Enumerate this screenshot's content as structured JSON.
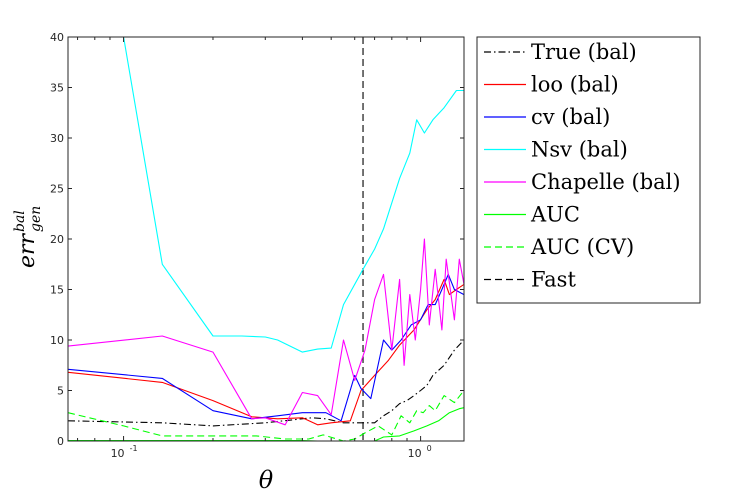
{
  "chart_data": {
    "type": "line",
    "xscale": "log",
    "xlim": [
      0.065,
      1.4
    ],
    "ylim": [
      0,
      40
    ],
    "grid": false,
    "legend_position": "outside-right",
    "xlabel": "θ",
    "ylabel": "err",
    "ylabel_sup": "bal",
    "ylabel_sub": "gen",
    "x_ticks": [
      {
        "value": 0.1,
        "label": "10",
        "exp": "-1"
      },
      {
        "value": 1.0,
        "label": "10",
        "exp": "0"
      }
    ],
    "y_ticks": [
      {
        "value": 0,
        "label": "0"
      },
      {
        "value": 5,
        "label": "5"
      },
      {
        "value": 10,
        "label": "10"
      },
      {
        "value": 15,
        "label": "15"
      },
      {
        "value": 20,
        "label": "20"
      },
      {
        "value": 25,
        "label": "25"
      },
      {
        "value": 30,
        "label": "30"
      },
      {
        "value": 35,
        "label": "35"
      },
      {
        "value": 40,
        "label": "40"
      }
    ],
    "vline": {
      "name": "Fast",
      "x": 0.64,
      "color": "#000000",
      "dash": "dashed"
    },
    "series": [
      {
        "name": "True (bal)",
        "color": "#000000",
        "dash": "dashdot",
        "points": [
          [
            0.065,
            2.0
          ],
          [
            0.135,
            1.8
          ],
          [
            0.2,
            1.5
          ],
          [
            0.3,
            1.8
          ],
          [
            0.43,
            2.3
          ],
          [
            0.48,
            2.2
          ],
          [
            0.55,
            1.8
          ],
          [
            0.65,
            1.8
          ],
          [
            0.7,
            1.8
          ],
          [
            0.75,
            2.5
          ],
          [
            0.8,
            3.0
          ],
          [
            0.85,
            3.7
          ],
          [
            0.9,
            4.0
          ],
          [
            0.95,
            4.5
          ],
          [
            1.0,
            5.0
          ],
          [
            1.05,
            5.5
          ],
          [
            1.1,
            6.5
          ],
          [
            1.2,
            7.5
          ],
          [
            1.3,
            9.0
          ],
          [
            1.4,
            10.0
          ]
        ]
      },
      {
        "name": "loo (bal)",
        "color": "#ff0000",
        "dash": "solid",
        "points": [
          [
            0.065,
            6.8
          ],
          [
            0.135,
            5.8
          ],
          [
            0.2,
            4.0
          ],
          [
            0.27,
            2.4
          ],
          [
            0.33,
            2.2
          ],
          [
            0.4,
            2.3
          ],
          [
            0.45,
            1.6
          ],
          [
            0.5,
            1.8
          ],
          [
            0.58,
            2.0
          ],
          [
            0.63,
            5.0
          ],
          [
            0.7,
            6.5
          ],
          [
            0.78,
            8.0
          ],
          [
            0.85,
            9.5
          ],
          [
            0.95,
            11.0
          ],
          [
            1.05,
            13.0
          ],
          [
            1.12,
            14.0
          ],
          [
            1.2,
            16.0
          ],
          [
            1.25,
            14.5
          ],
          [
            1.32,
            15.0
          ],
          [
            1.4,
            15.5
          ]
        ]
      },
      {
        "name": "cv (bal)",
        "color": "#0000ff",
        "dash": "solid",
        "points": [
          [
            0.065,
            7.1
          ],
          [
            0.135,
            6.2
          ],
          [
            0.2,
            3.0
          ],
          [
            0.27,
            2.2
          ],
          [
            0.33,
            2.5
          ],
          [
            0.4,
            2.8
          ],
          [
            0.48,
            2.8
          ],
          [
            0.54,
            2.0
          ],
          [
            0.6,
            6.5
          ],
          [
            0.63,
            5.2
          ],
          [
            0.68,
            4.2
          ],
          [
            0.75,
            10.0
          ],
          [
            0.8,
            9.0
          ],
          [
            0.86,
            10.0
          ],
          [
            0.93,
            11.5
          ],
          [
            1.0,
            12.0
          ],
          [
            1.06,
            13.5
          ],
          [
            1.12,
            13.5
          ],
          [
            1.18,
            15.0
          ],
          [
            1.24,
            16.5
          ],
          [
            1.3,
            15.0
          ],
          [
            1.4,
            14.5
          ]
        ]
      },
      {
        "name": "Nsv (bal)",
        "color": "#00ffff",
        "dash": "solid",
        "points": [
          [
            0.088,
            45.0
          ],
          [
            0.1,
            40.0
          ],
          [
            0.135,
            17.5
          ],
          [
            0.2,
            10.4
          ],
          [
            0.25,
            10.4
          ],
          [
            0.3,
            10.3
          ],
          [
            0.33,
            10.0
          ],
          [
            0.4,
            8.8
          ],
          [
            0.45,
            9.1
          ],
          [
            0.5,
            9.2
          ],
          [
            0.55,
            13.5
          ],
          [
            0.64,
            17.0
          ],
          [
            0.7,
            19.0
          ],
          [
            0.75,
            21.0
          ],
          [
            0.85,
            26.0
          ],
          [
            0.92,
            28.5
          ],
          [
            0.97,
            31.8
          ],
          [
            1.03,
            30.5
          ],
          [
            1.1,
            31.8
          ],
          [
            1.2,
            33.0
          ],
          [
            1.32,
            34.7
          ],
          [
            1.4,
            34.7
          ]
        ]
      },
      {
        "name": "Chapelle (bal)",
        "color": "#ff00ff",
        "dash": "solid",
        "points": [
          [
            0.065,
            9.4
          ],
          [
            0.135,
            10.4
          ],
          [
            0.2,
            8.8
          ],
          [
            0.27,
            2.2
          ],
          [
            0.3,
            2.3
          ],
          [
            0.35,
            1.6
          ],
          [
            0.4,
            4.8
          ],
          [
            0.45,
            4.5
          ],
          [
            0.5,
            2.6
          ],
          [
            0.55,
            10.0
          ],
          [
            0.6,
            6.0
          ],
          [
            0.65,
            9.0
          ],
          [
            0.7,
            14.0
          ],
          [
            0.75,
            16.5
          ],
          [
            0.8,
            9.0
          ],
          [
            0.85,
            16.0
          ],
          [
            0.88,
            7.5
          ],
          [
            0.92,
            14.5
          ],
          [
            0.96,
            10.0
          ],
          [
            1.0,
            15.0
          ],
          [
            1.03,
            20.0
          ],
          [
            1.07,
            11.5
          ],
          [
            1.12,
            17.0
          ],
          [
            1.18,
            11.0
          ],
          [
            1.22,
            18.0
          ],
          [
            1.3,
            12.0
          ],
          [
            1.35,
            18.0
          ],
          [
            1.4,
            15.5
          ]
        ]
      },
      {
        "name": "AUC",
        "color": "#00ff00",
        "dash": "solid",
        "points": [
          [
            0.065,
            0.05
          ],
          [
            0.4,
            0.05
          ],
          [
            0.45,
            0.0
          ],
          [
            0.7,
            0.0
          ],
          [
            0.75,
            0.4
          ],
          [
            0.85,
            0.5
          ],
          [
            0.95,
            1.0
          ],
          [
            1.05,
            1.5
          ],
          [
            1.15,
            2.0
          ],
          [
            1.25,
            2.8
          ],
          [
            1.35,
            3.2
          ],
          [
            1.4,
            3.3
          ]
        ]
      },
      {
        "name": "AUC (CV)",
        "color": "#00ff00",
        "dash": "dashed",
        "points": [
          [
            0.065,
            2.8
          ],
          [
            0.1,
            1.5
          ],
          [
            0.135,
            0.5
          ],
          [
            0.2,
            0.5
          ],
          [
            0.28,
            0.5
          ],
          [
            0.35,
            0.2
          ],
          [
            0.42,
            0.2
          ],
          [
            0.47,
            0.6
          ],
          [
            0.55,
            0.0
          ],
          [
            0.6,
            0.2
          ],
          [
            0.65,
            0.8
          ],
          [
            0.72,
            1.5
          ],
          [
            0.8,
            0.6
          ],
          [
            0.86,
            2.5
          ],
          [
            0.92,
            1.8
          ],
          [
            0.97,
            3.0
          ],
          [
            1.02,
            2.8
          ],
          [
            1.07,
            3.5
          ],
          [
            1.12,
            3.0
          ],
          [
            1.2,
            4.5
          ],
          [
            1.3,
            3.8
          ],
          [
            1.4,
            5.0
          ]
        ]
      }
    ],
    "legend": [
      {
        "label": "True (bal)",
        "color": "#000000",
        "dash": "dashdot"
      },
      {
        "label": "loo (bal)",
        "color": "#ff0000",
        "dash": "solid"
      },
      {
        "label": "cv (bal)",
        "color": "#0000ff",
        "dash": "solid"
      },
      {
        "label": "Nsv (bal)",
        "color": "#00ffff",
        "dash": "solid"
      },
      {
        "label": "Chapelle (bal)",
        "color": "#ff00ff",
        "dash": "solid"
      },
      {
        "label": "AUC",
        "color": "#00ff00",
        "dash": "solid"
      },
      {
        "label": "AUC (CV)",
        "color": "#00ff00",
        "dash": "dashed"
      },
      {
        "label": "Fast",
        "color": "#000000",
        "dash": "dashed"
      }
    ]
  }
}
